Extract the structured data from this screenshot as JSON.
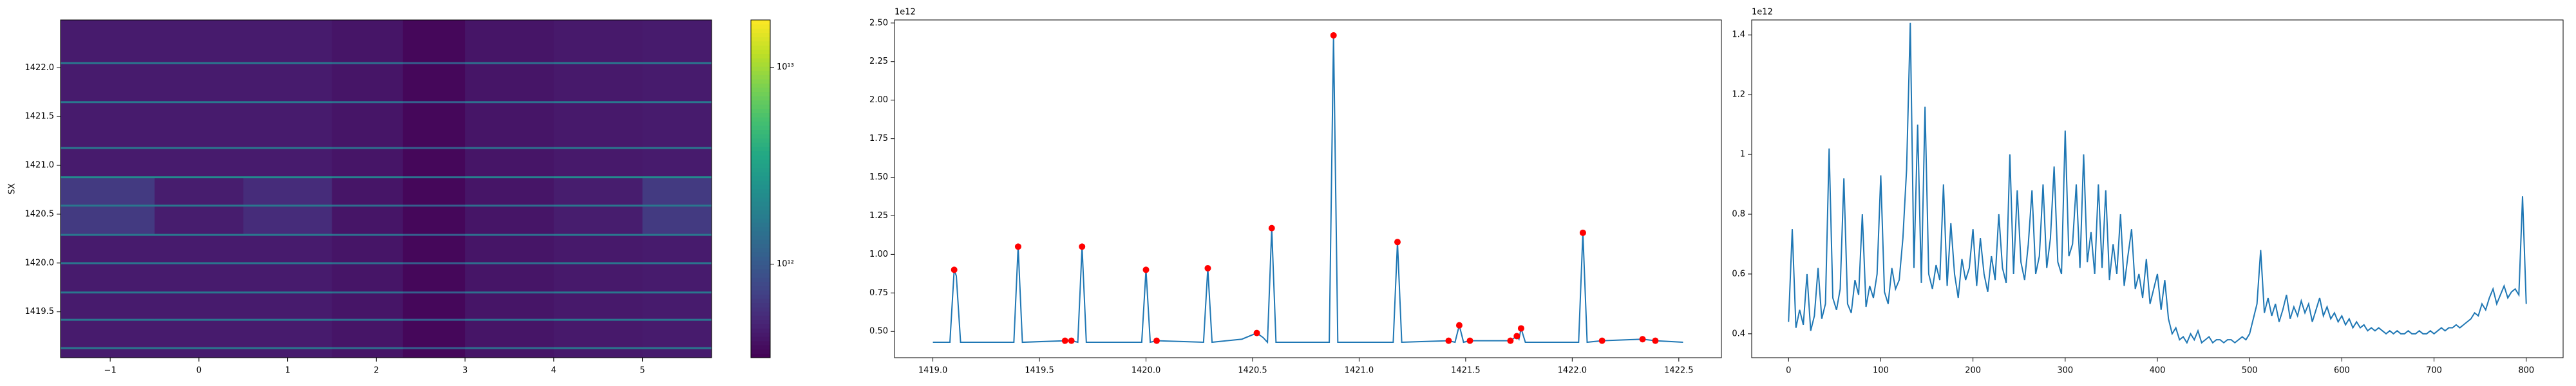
{
  "chart_data": [
    {
      "type": "heatmap",
      "ylabel": "SX",
      "colormap": "viridis",
      "color_scale": "log",
      "xlim": [
        -1.56,
        5.78
      ],
      "ylim": [
        1419.03,
        1422.49
      ],
      "xticks": [
        {
          "value": -1,
          "label": "−1"
        },
        0,
        1,
        2,
        3,
        4,
        5
      ],
      "yticks": [
        1419.5,
        {
          "value": 1420,
          "label": "1420.0"
        },
        1420.5,
        {
          "value": 1421,
          "label": "1421.0"
        },
        1421.5,
        {
          "value": 1422,
          "label": "1422.0"
        }
      ],
      "x_edges": [
        -1.56,
        -0.5,
        0.5,
        1.5,
        2.3,
        3.0,
        4.0,
        5.0,
        5.78
      ],
      "y_edges": [
        1419.03,
        1419.12,
        1419.14,
        1419.41,
        1419.43,
        1419.69,
        1419.71,
        1419.99,
        1420.01,
        1420.28,
        1420.3,
        1420.58,
        1420.6,
        1420.87,
        1420.89,
        1421.17,
        1421.19,
        1421.64,
        1421.66,
        1422.04,
        1422.06,
        1422.49
      ],
      "z": [
        [
          450000000000.0,
          450000000000.0,
          450000000000.0,
          420000000000.0,
          360000000000.0,
          420000000000.0,
          440000000000.0,
          450000000000.0
        ],
        [
          1600000000000.0,
          1600000000000.0,
          1600000000000.0,
          1400000000000.0,
          1100000000000.0,
          1400000000000.0,
          1600000000000.0,
          1600000000000.0
        ],
        [
          450000000000.0,
          450000000000.0,
          450000000000.0,
          420000000000.0,
          360000000000.0,
          420000000000.0,
          440000000000.0,
          450000000000.0
        ],
        [
          1600000000000.0,
          1600000000000.0,
          1600000000000.0,
          1400000000000.0,
          1100000000000.0,
          1400000000000.0,
          1600000000000.0,
          1600000000000.0
        ],
        [
          450000000000.0,
          450000000000.0,
          450000000000.0,
          420000000000.0,
          360000000000.0,
          420000000000.0,
          440000000000.0,
          450000000000.0
        ],
        [
          1600000000000.0,
          1600000000000.0,
          1600000000000.0,
          1400000000000.0,
          1100000000000.0,
          1400000000000.0,
          1600000000000.0,
          1600000000000.0
        ],
        [
          450000000000.0,
          450000000000.0,
          450000000000.0,
          420000000000.0,
          360000000000.0,
          420000000000.0,
          440000000000.0,
          450000000000.0
        ],
        [
          1600000000000.0,
          1600000000000.0,
          1600000000000.0,
          1400000000000.0,
          1100000000000.0,
          1400000000000.0,
          1600000000000.0,
          1600000000000.0
        ],
        [
          450000000000.0,
          450000000000.0,
          450000000000.0,
          420000000000.0,
          360000000000.0,
          420000000000.0,
          440000000000.0,
          450000000000.0
        ],
        [
          1600000000000.0,
          1600000000000.0,
          1600000000000.0,
          1400000000000.0,
          1100000000000.0,
          1400000000000.0,
          1600000000000.0,
          1600000000000.0
        ],
        [
          650000000000.0,
          460000000000.0,
          550000000000.0,
          420000000000.0,
          360000000000.0,
          420000000000.0,
          460000000000.0,
          650000000000.0
        ],
        [
          1600000000000.0,
          1600000000000.0,
          1600000000000.0,
          1400000000000.0,
          1100000000000.0,
          1400000000000.0,
          1600000000000.0,
          1600000000000.0
        ],
        [
          650000000000.0,
          460000000000.0,
          550000000000.0,
          420000000000.0,
          360000000000.0,
          420000000000.0,
          460000000000.0,
          650000000000.0
        ],
        [
          2200000000000.0,
          2200000000000.0,
          2200000000000.0,
          1900000000000.0,
          1500000000000.0,
          1900000000000.0,
          2200000000000.0,
          2200000000000.0
        ],
        [
          450000000000.0,
          450000000000.0,
          450000000000.0,
          420000000000.0,
          360000000000.0,
          420000000000.0,
          440000000000.0,
          450000000000.0
        ],
        [
          1600000000000.0,
          1600000000000.0,
          1600000000000.0,
          1400000000000.0,
          1100000000000.0,
          1400000000000.0,
          1600000000000.0,
          1600000000000.0
        ],
        [
          450000000000.0,
          450000000000.0,
          450000000000.0,
          420000000000.0,
          360000000000.0,
          420000000000.0,
          440000000000.0,
          450000000000.0
        ],
        [
          1600000000000.0,
          1600000000000.0,
          1600000000000.0,
          1400000000000.0,
          1100000000000.0,
          1400000000000.0,
          1600000000000.0,
          1600000000000.0
        ],
        [
          450000000000.0,
          450000000000.0,
          450000000000.0,
          420000000000.0,
          360000000000.0,
          420000000000.0,
          440000000000.0,
          450000000000.0
        ],
        [
          1600000000000.0,
          1600000000000.0,
          1600000000000.0,
          1400000000000.0,
          1100000000000.0,
          1400000000000.0,
          1600000000000.0,
          1600000000000.0
        ],
        [
          450000000000.0,
          450000000000.0,
          450000000000.0,
          420000000000.0,
          360000000000.0,
          420000000000.0,
          440000000000.0,
          450000000000.0
        ]
      ],
      "colorbar": {
        "lim": [
          335000000000.0,
          17400000000000.0
        ],
        "ticks": [
          {
            "value": 1000000000000.0,
            "label": "10¹²"
          },
          {
            "value": 10000000000000.0,
            "label": "10¹³"
          }
        ]
      }
    },
    {
      "type": "line",
      "y_offset_label": "1e12",
      "xlim": [
        1418.82,
        1422.7
      ],
      "ylim": [
        0.33,
        2.52
      ],
      "xticks": [
        {
          "value": 1419,
          "label": "1419.0"
        },
        1419.5,
        {
          "value": 1420,
          "label": "1420.0"
        },
        1420.5,
        {
          "value": 1421,
          "label": "1421.0"
        },
        1421.5,
        {
          "value": 1422,
          "label": "1422.0"
        },
        1422.5
      ],
      "yticks": [
        {
          "value": 0.5,
          "label": "0.50"
        },
        {
          "value": 0.75,
          "label": "0.75"
        },
        {
          "value": 1,
          "label": "1.00"
        },
        {
          "value": 1.25,
          "label": "1.25"
        },
        {
          "value": 1.5,
          "label": "1.50"
        },
        {
          "value": 1.75,
          "label": "1.75"
        },
        {
          "value": 2,
          "label": "2.00"
        },
        {
          "value": 2.25,
          "label": "2.25"
        },
        {
          "value": 2.5,
          "label": "2.50"
        }
      ],
      "series": [
        {
          "kind": "line",
          "color": "#1f77b4",
          "x": [
            1419.0,
            1419.08,
            1419.1,
            1419.11,
            1419.13,
            1419.38,
            1419.4,
            1419.42,
            1419.62,
            1419.65,
            1419.68,
            1419.7,
            1419.72,
            1419.98,
            1420.0,
            1420.02,
            1420.05,
            1420.27,
            1420.29,
            1420.31,
            1420.45,
            1420.52,
            1420.55,
            1420.57,
            1420.59,
            1420.61,
            1420.86,
            1420.88,
            1420.9,
            1421.16,
            1421.18,
            1421.2,
            1421.42,
            1421.45,
            1421.47,
            1421.49,
            1421.52,
            1421.71,
            1421.74,
            1421.75,
            1421.76,
            1421.78,
            1422.03,
            1422.05,
            1422.07,
            1422.14,
            1422.33,
            1422.39,
            1422.52
          ],
          "values": [
            0.43,
            0.43,
            0.9,
            0.86,
            0.43,
            0.43,
            1.05,
            0.43,
            0.44,
            0.44,
            0.43,
            1.05,
            0.43,
            0.43,
            0.9,
            0.43,
            0.44,
            0.43,
            0.91,
            0.43,
            0.45,
            0.49,
            0.46,
            0.43,
            1.17,
            0.43,
            0.43,
            2.42,
            0.43,
            0.43,
            1.08,
            0.43,
            0.44,
            0.43,
            0.54,
            0.43,
            0.44,
            0.44,
            0.47,
            0.45,
            0.52,
            0.43,
            0.43,
            1.14,
            0.43,
            0.44,
            0.45,
            0.44,
            0.43
          ]
        },
        {
          "kind": "scatter",
          "color": "#ff0000",
          "x": [
            1419.1,
            1419.4,
            1419.62,
            1419.65,
            1419.7,
            1420.0,
            1420.05,
            1420.29,
            1420.52,
            1420.59,
            1420.88,
            1421.18,
            1421.42,
            1421.47,
            1421.52,
            1421.71,
            1421.74,
            1421.76,
            1422.05,
            1422.14,
            1422.33,
            1422.39
          ],
          "values": [
            0.9,
            1.05,
            0.44,
            0.44,
            1.05,
            0.9,
            0.44,
            0.91,
            0.49,
            1.17,
            2.42,
            1.08,
            0.44,
            0.54,
            0.44,
            0.44,
            0.47,
            0.52,
            1.14,
            0.44,
            0.45,
            0.44
          ]
        }
      ]
    },
    {
      "type": "line",
      "y_offset_label": "1e12",
      "xlim": [
        -40,
        840
      ],
      "ylim": [
        0.32,
        1.45
      ],
      "xticks": [
        0,
        100,
        200,
        300,
        400,
        500,
        600,
        700,
        800
      ],
      "yticks": [
        0.4,
        0.6,
        0.8,
        1,
        1.2,
        1.4
      ],
      "series": [
        {
          "kind": "line",
          "color": "#1f77b4",
          "x": [
            0,
            4,
            8,
            12,
            16,
            20,
            24,
            28,
            32,
            36,
            40,
            44,
            48,
            52,
            56,
            60,
            64,
            68,
            72,
            76,
            80,
            84,
            88,
            92,
            96,
            100,
            104,
            108,
            112,
            116,
            120,
            124,
            128,
            132,
            136,
            140,
            144,
            148,
            152,
            156,
            160,
            164,
            168,
            172,
            176,
            180,
            184,
            188,
            192,
            196,
            200,
            204,
            208,
            212,
            216,
            220,
            224,
            228,
            232,
            236,
            240,
            244,
            248,
            252,
            256,
            260,
            264,
            268,
            272,
            276,
            280,
            284,
            288,
            292,
            296,
            300,
            304,
            308,
            312,
            316,
            320,
            324,
            328,
            332,
            336,
            340,
            344,
            348,
            352,
            356,
            360,
            364,
            368,
            372,
            376,
            380,
            384,
            388,
            392,
            396,
            400,
            404,
            408,
            412,
            416,
            420,
            424,
            428,
            432,
            436,
            440,
            444,
            448,
            452,
            456,
            460,
            464,
            468,
            472,
            476,
            480,
            484,
            488,
            492,
            496,
            500,
            504,
            508,
            512,
            516,
            520,
            524,
            528,
            532,
            536,
            540,
            544,
            548,
            552,
            556,
            560,
            564,
            568,
            572,
            576,
            580,
            584,
            588,
            592,
            596,
            600,
            604,
            608,
            612,
            616,
            620,
            624,
            628,
            632,
            636,
            640,
            644,
            648,
            652,
            656,
            660,
            664,
            668,
            672,
            676,
            680,
            684,
            688,
            692,
            696,
            700,
            704,
            708,
            712,
            716,
            720,
            724,
            728,
            732,
            736,
            740,
            744,
            748,
            752,
            756,
            760,
            764,
            768,
            772,
            776,
            780,
            784,
            788,
            792,
            796,
            800
          ],
          "values": [
            0.44,
            0.75,
            0.42,
            0.48,
            0.43,
            0.6,
            0.41,
            0.46,
            0.62,
            0.45,
            0.5,
            1.02,
            0.52,
            0.48,
            0.55,
            0.92,
            0.5,
            0.47,
            0.58,
            0.53,
            0.8,
            0.49,
            0.56,
            0.52,
            0.6,
            0.93,
            0.54,
            0.5,
            0.62,
            0.55,
            0.58,
            0.72,
            0.95,
            1.44,
            0.62,
            1.1,
            0.57,
            1.16,
            0.6,
            0.55,
            0.63,
            0.58,
            0.9,
            0.56,
            0.77,
            0.6,
            0.52,
            0.65,
            0.58,
            0.62,
            0.75,
            0.56,
            0.72,
            0.6,
            0.54,
            0.66,
            0.58,
            0.8,
            0.62,
            0.57,
            1.0,
            0.6,
            0.88,
            0.64,
            0.58,
            0.7,
            0.88,
            0.6,
            0.66,
            0.9,
            0.62,
            0.72,
            0.96,
            0.64,
            0.6,
            1.08,
            0.66,
            0.7,
            0.9,
            0.62,
            1.0,
            0.64,
            0.74,
            0.6,
            0.9,
            0.62,
            0.88,
            0.58,
            0.7,
            0.6,
            0.8,
            0.56,
            0.66,
            0.75,
            0.55,
            0.6,
            0.52,
            0.65,
            0.5,
            0.55,
            0.6,
            0.48,
            0.58,
            0.45,
            0.4,
            0.42,
            0.38,
            0.39,
            0.37,
            0.4,
            0.38,
            0.41,
            0.37,
            0.38,
            0.39,
            0.37,
            0.38,
            0.38,
            0.37,
            0.38,
            0.38,
            0.37,
            0.38,
            0.39,
            0.38,
            0.4,
            0.45,
            0.5,
            0.68,
            0.47,
            0.52,
            0.46,
            0.5,
            0.44,
            0.48,
            0.53,
            0.45,
            0.49,
            0.46,
            0.51,
            0.47,
            0.5,
            0.44,
            0.48,
            0.52,
            0.46,
            0.49,
            0.45,
            0.47,
            0.44,
            0.46,
            0.43,
            0.45,
            0.42,
            0.44,
            0.42,
            0.43,
            0.41,
            0.42,
            0.41,
            0.42,
            0.41,
            0.4,
            0.41,
            0.4,
            0.41,
            0.4,
            0.4,
            0.41,
            0.4,
            0.4,
            0.41,
            0.4,
            0.4,
            0.41,
            0.4,
            0.41,
            0.42,
            0.41,
            0.42,
            0.42,
            0.43,
            0.42,
            0.43,
            0.44,
            0.45,
            0.47,
            0.46,
            0.5,
            0.48,
            0.52,
            0.55,
            0.5,
            0.53,
            0.56,
            0.52,
            0.54,
            0.55,
            0.53,
            0.86,
            0.5
          ]
        }
      ]
    }
  ]
}
